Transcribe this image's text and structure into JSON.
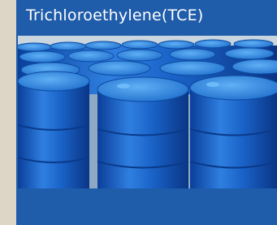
{
  "title": "Trichloroethylene(TCE)"
}
